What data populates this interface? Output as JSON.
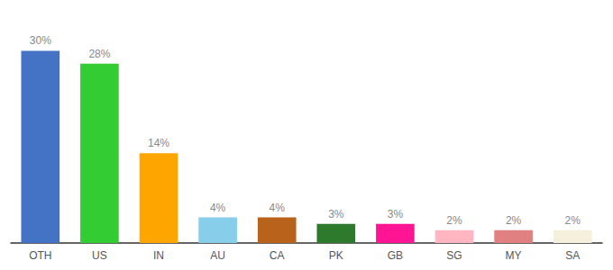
{
  "chart_data": {
    "type": "bar",
    "categories": [
      "OTH",
      "US",
      "IN",
      "AU",
      "CA",
      "PK",
      "GB",
      "SG",
      "MY",
      "SA"
    ],
    "values": [
      30,
      28,
      14,
      4,
      4,
      3,
      3,
      2,
      2,
      2
    ],
    "value_labels": [
      "30%",
      "28%",
      "14%",
      "4%",
      "4%",
      "3%",
      "3%",
      "2%",
      "2%",
      "2%"
    ],
    "colors": [
      "#4472C4",
      "#33CC33",
      "#FFA500",
      "#87CEEB",
      "#B8621B",
      "#2D7A2D",
      "#FF1493",
      "#FFB6C1",
      "#E08080",
      "#F5F0DC"
    ],
    "ylim": [
      0,
      34
    ],
    "data_labels": true,
    "tick_labels": "x",
    "grid": false
  }
}
